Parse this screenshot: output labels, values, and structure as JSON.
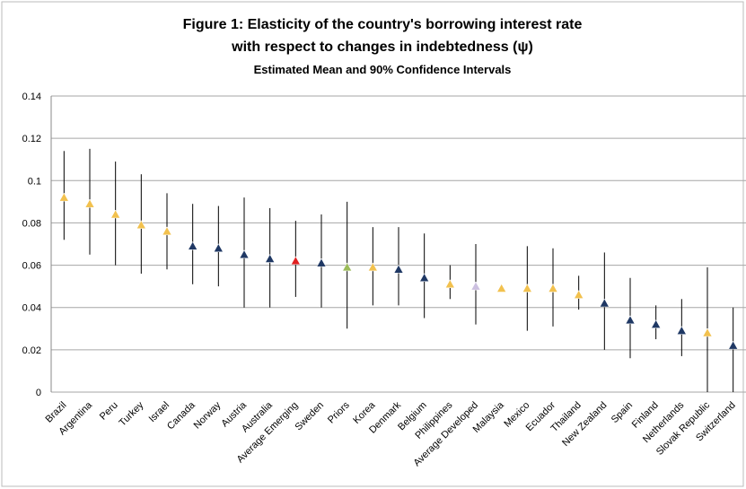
{
  "chart_data": {
    "type": "interval",
    "title": [
      "Figure 1: Elasticity  of the country's borrowing interest rate",
      "with respect to changes in indebtedness (ψ)"
    ],
    "subtitle": "Estimated Mean and 90% Confidence Intervals",
    "categories": [
      "Brazil",
      "Argentina",
      "Peru",
      "Turkey",
      "Israel",
      "Canada",
      "Norway",
      "Austria",
      "Australia",
      "Average Emerging",
      "Sweden",
      "Priors",
      "Korea",
      "Denmark",
      "Belgium",
      "Philippines",
      "Average Developed",
      "Malaysia",
      "Mexico",
      "Ecuador",
      "Thailand",
      "New Zealand",
      "Spain",
      "Finland",
      "Netherlands",
      "Slovak Republic",
      "Switzerland"
    ],
    "values": [
      0.092,
      0.089,
      0.084,
      0.079,
      0.076,
      0.069,
      0.068,
      0.065,
      0.063,
      0.062,
      0.061,
      0.059,
      0.059,
      0.058,
      0.054,
      0.051,
      0.05,
      0.049,
      0.049,
      0.049,
      0.046,
      0.042,
      0.034,
      0.032,
      0.029,
      0.028,
      0.022
    ],
    "lower": [
      0.072,
      0.065,
      0.06,
      0.056,
      0.058,
      0.051,
      0.05,
      0.04,
      0.04,
      0.045,
      0.04,
      0.03,
      0.041,
      0.041,
      0.035,
      0.044,
      0.032,
      null,
      0.029,
      0.031,
      0.039,
      0.02,
      0.016,
      0.025,
      0.017,
      0.0,
      0.0
    ],
    "upper": [
      0.114,
      0.115,
      0.109,
      0.103,
      0.094,
      0.089,
      0.088,
      0.092,
      0.087,
      0.081,
      0.084,
      0.09,
      0.078,
      0.078,
      0.075,
      0.06,
      0.07,
      null,
      0.069,
      0.068,
      0.055,
      0.066,
      0.054,
      0.041,
      0.044,
      0.059,
      0.04
    ],
    "colors": [
      "#f2c14e",
      "#f2c14e",
      "#f2c14e",
      "#f2c14e",
      "#f2c14e",
      "#1f3864",
      "#1f3864",
      "#1f3864",
      "#1f3864",
      "#e02020",
      "#1f3864",
      "#9bbb59",
      "#f2c14e",
      "#1f3864",
      "#1f3864",
      "#f2c14e",
      "#ccc0e0",
      "#f2c14e",
      "#f2c14e",
      "#f2c14e",
      "#f2c14e",
      "#1f3864",
      "#1f3864",
      "#1f3864",
      "#1f3864",
      "#f2c14e",
      "#1f3864"
    ],
    "ylim": [
      0,
      0.14
    ],
    "yticks": [
      0,
      0.02,
      0.04,
      0.06,
      0.08,
      0.1,
      0.12,
      0.14
    ],
    "grid": true
  }
}
